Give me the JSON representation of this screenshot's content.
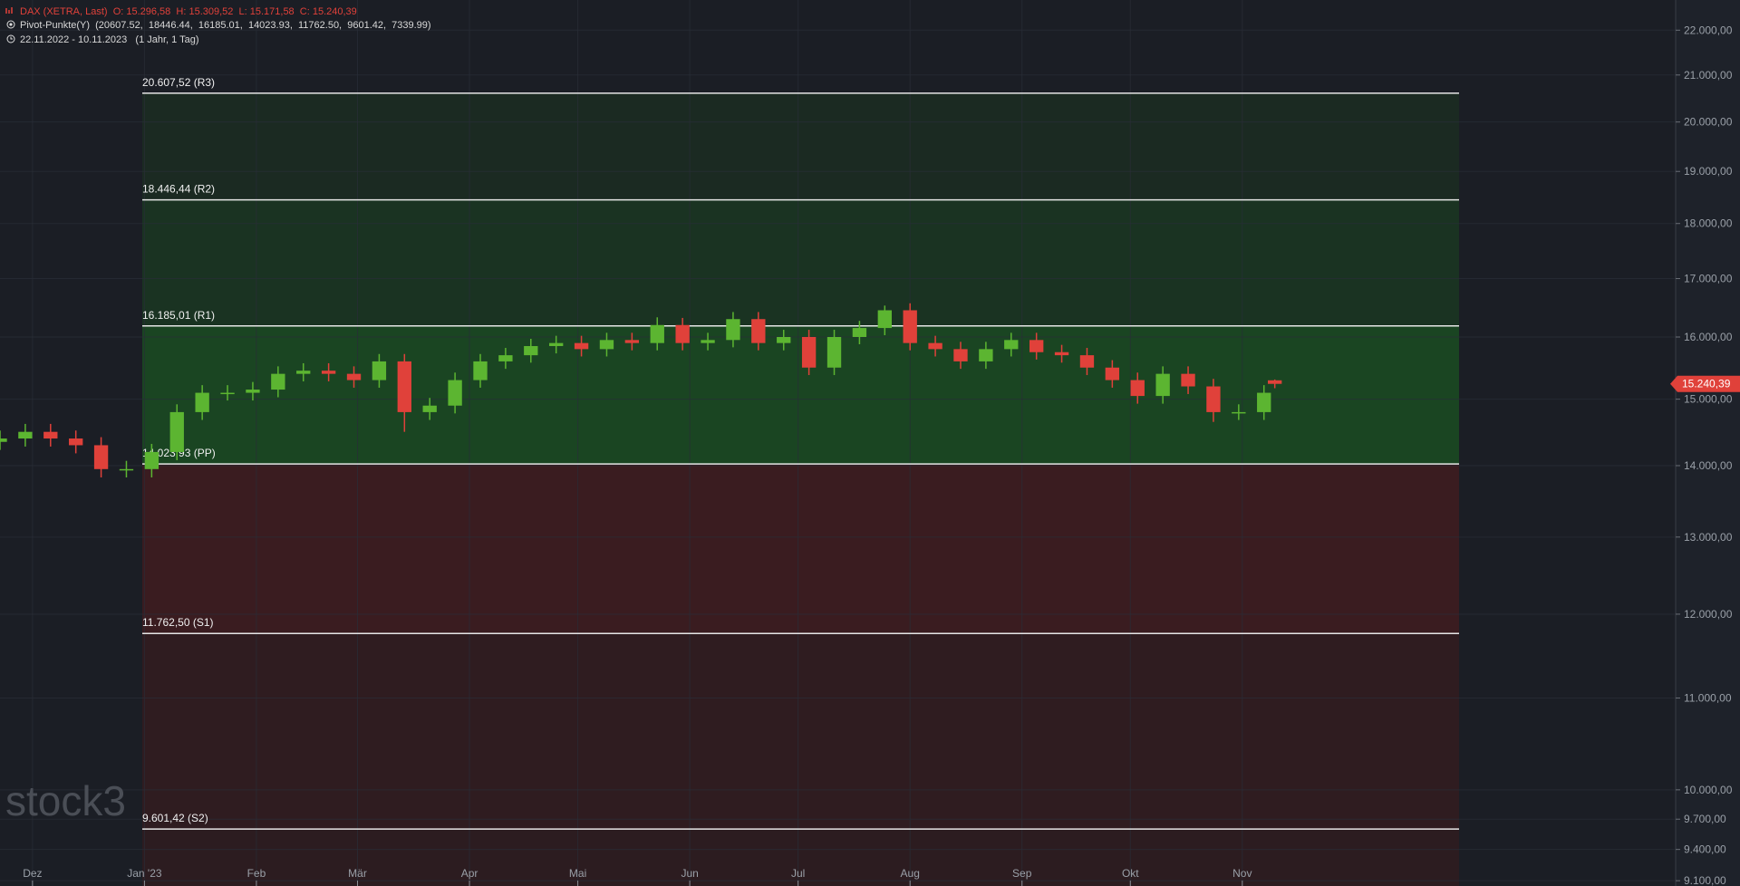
{
  "header": {
    "line1": "DAX (XETRA, Last)  O: 15.296,58  H: 15.309,52  L: 15.171,58  C: 15.240,39",
    "line2": "Pivot-Punkte(Y)  (20607.52,  18446.44,  16185.01,  14023.93,  11762.50,  9601.42,  7339.99)",
    "line3": "22.11.2022 - 10.11.2023   (1 Jahr, 1 Tag)"
  },
  "watermark": "stock3",
  "chart_data": {
    "type": "candlestick",
    "log_scale": true,
    "grid": true,
    "up_color": "#5cb531",
    "down_color": "#e0413a",
    "x": [
      0,
      7,
      14,
      21,
      28,
      35,
      42,
      49,
      56,
      63,
      70,
      77,
      84,
      91,
      98,
      105,
      112,
      119,
      126,
      133,
      140,
      147,
      154,
      161,
      168,
      175,
      182,
      189,
      196,
      203,
      210,
      217,
      224,
      231,
      238,
      245,
      252,
      259,
      266,
      273,
      280,
      287,
      294,
      301,
      308,
      315,
      322,
      329,
      336,
      343,
      350,
      353
    ],
    "open": [
      14350,
      14400,
      14500,
      14400,
      14300,
      13950,
      13950,
      14200,
      14800,
      15100,
      15100,
      15150,
      15400,
      15450,
      15400,
      15300,
      15600,
      14800,
      14900,
      15300,
      15600,
      15700,
      15850,
      15900,
      15800,
      15950,
      15900,
      16200,
      15900,
      15950,
      16300,
      15900,
      16000,
      15500,
      16000,
      16150,
      16450,
      15900,
      15800,
      15600,
      15800,
      15950,
      15750,
      15700,
      15500,
      15300,
      15050,
      15400,
      15200,
      14800,
      14800,
      15296.58
    ],
    "high": [
      14520,
      14620,
      14620,
      14520,
      14420,
      14070,
      14320,
      14920,
      15220,
      15220,
      15270,
      15520,
      15570,
      15570,
      15520,
      15720,
      15720,
      15020,
      15420,
      15720,
      15820,
      15970,
      16020,
      16020,
      16070,
      16070,
      16330,
      16320,
      16070,
      16420,
      16420,
      16120,
      16120,
      16120,
      16270,
      16530,
      16570,
      16020,
      15920,
      15920,
      16070,
      16070,
      15870,
      15820,
      15620,
      15420,
      15520,
      15520,
      15320,
      14920,
      15220,
      15309.52
    ],
    "low": [
      14230,
      14280,
      14280,
      14180,
      13830,
      13830,
      13830,
      14080,
      14680,
      14980,
      14980,
      15030,
      15280,
      15280,
      15180,
      15180,
      14500,
      14680,
      14780,
      15180,
      15480,
      15580,
      15730,
      15680,
      15680,
      15780,
      15780,
      15780,
      15780,
      15830,
      15780,
      15780,
      15380,
      15380,
      15880,
      16030,
      15780,
      15680,
      15480,
      15480,
      15680,
      15630,
      15580,
      15380,
      15180,
      14930,
      14930,
      15080,
      14650,
      14680,
      14680,
      15171.58
    ],
    "close": [
      14400,
      14500,
      14400,
      14300,
      13950,
      13950,
      14200,
      14800,
      15100,
      15100,
      15150,
      15400,
      15450,
      15400,
      15300,
      15600,
      14800,
      14900,
      15300,
      15600,
      15700,
      15850,
      15900,
      15800,
      15950,
      15900,
      16200,
      15900,
      15950,
      16300,
      15900,
      16000,
      15500,
      16000,
      16150,
      16450,
      15900,
      15800,
      15600,
      15800,
      15950,
      15750,
      15700,
      15500,
      15300,
      15050,
      15400,
      15200,
      14800,
      14800,
      15100,
      15240.39
    ],
    "last_price": {
      "value": 15240.39,
      "label": "15.240,39"
    },
    "xlim": [
      0,
      464
    ],
    "xticks": [
      {
        "value": 9,
        "label": "Dez"
      },
      {
        "value": 40,
        "label": "Jan '23"
      },
      {
        "value": 71,
        "label": "Feb"
      },
      {
        "value": 99,
        "label": "Mär"
      },
      {
        "value": 130,
        "label": "Apr"
      },
      {
        "value": 160,
        "label": "Mai"
      },
      {
        "value": 191,
        "label": "Jun"
      },
      {
        "value": 221,
        "label": "Jul"
      },
      {
        "value": 252,
        "label": "Aug"
      },
      {
        "value": 283,
        "label": "Sep"
      },
      {
        "value": 313,
        "label": "Okt"
      },
      {
        "value": 344,
        "label": "Nov"
      }
    ],
    "ylim": [
      9050,
      22700
    ],
    "yticks": [
      {
        "value": 9100,
        "label": "9.100,00"
      },
      {
        "value": 9400,
        "label": "9.400,00"
      },
      {
        "value": 9700,
        "label": "9.700,00"
      },
      {
        "value": 10000,
        "label": "10.000,00"
      },
      {
        "value": 11000,
        "label": "11.000,00"
      },
      {
        "value": 12000,
        "label": "12.000,00"
      },
      {
        "value": 13000,
        "label": "13.000,00"
      },
      {
        "value": 14000,
        "label": "14.000,00"
      },
      {
        "value": 15000,
        "label": "15.000,00"
      },
      {
        "value": 16000,
        "label": "16.000,00"
      },
      {
        "value": 17000,
        "label": "17.000,00"
      },
      {
        "value": 18000,
        "label": "18.000,00"
      },
      {
        "value": 19000,
        "label": "19.000,00"
      },
      {
        "value": 20000,
        "label": "20.000,00"
      },
      {
        "value": 21000,
        "label": "21.000,00"
      },
      {
        "value": 22000,
        "label": "22.000,00"
      }
    ],
    "pivots": [
      {
        "value": 20607.52,
        "label": "20.607,52 (R3)",
        "color": "#1b2a22"
      },
      {
        "value": 18446.44,
        "label": "18.446,44 (R2)",
        "color": "#1a3322"
      },
      {
        "value": 16185.01,
        "label": "16.185,01 (R1)",
        "color": "#1a4522"
      },
      {
        "value": 14023.93,
        "label": "14.023,93 (PP)",
        "color": "#3a1c20"
      },
      {
        "value": 11762.5,
        "label": "11.762,50 (S1)",
        "color": "#2f1c20"
      },
      {
        "value": 9601.42,
        "label": "9.601,42 (S2)",
        "color": "#2c1c20"
      }
    ]
  }
}
